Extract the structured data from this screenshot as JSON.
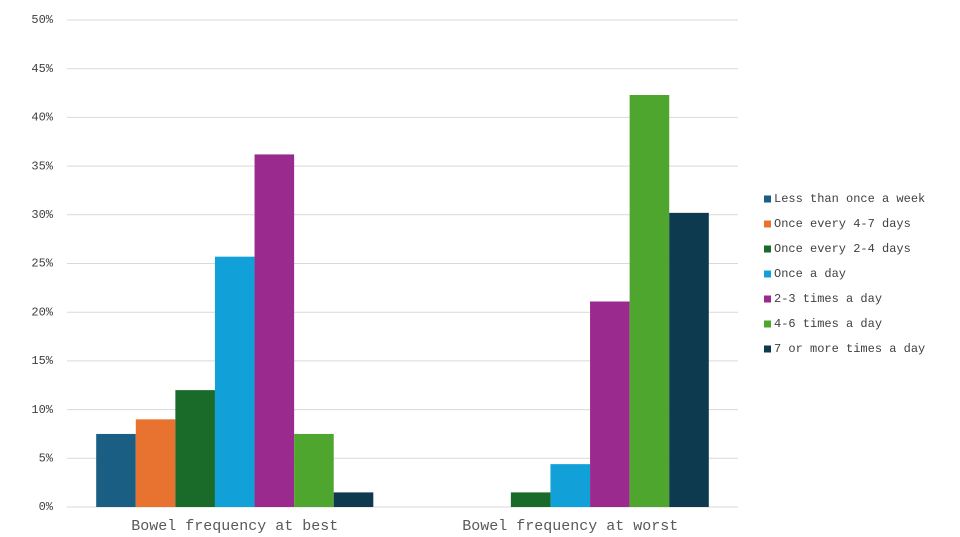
{
  "chart_data": {
    "type": "bar",
    "categories": [
      "Bowel frequency at best",
      "Bowel frequency at worst"
    ],
    "series": [
      {
        "name": "Less than once a week",
        "color": "#1a5e84",
        "values": [
          7.5,
          0
        ]
      },
      {
        "name": "Once every 4-7 days",
        "color": "#e87230",
        "values": [
          9.0,
          0
        ]
      },
      {
        "name": "Once every 2-4 days",
        "color": "#1a6b2a",
        "values": [
          12.0,
          1.5
        ]
      },
      {
        "name": "Once a day",
        "color": "#12a0d8",
        "values": [
          25.7,
          4.4
        ]
      },
      {
        "name": "2-3 times a day",
        "color": "#9b2a8f",
        "values": [
          36.2,
          21.1
        ]
      },
      {
        "name": "4-6 times a day",
        "color": "#4ea62f",
        "values": [
          7.5,
          42.3
        ]
      },
      {
        "name": "7 or more times a day",
        "color": "#0e3a4f",
        "values": [
          1.5,
          30.2
        ]
      }
    ],
    "ylim": [
      0,
      50
    ],
    "yticks": [
      {
        "value": 0,
        "label": "0%"
      },
      {
        "value": 5,
        "label": "5%"
      },
      {
        "value": 10,
        "label": "10%"
      },
      {
        "value": 15,
        "label": "15%"
      },
      {
        "value": 20,
        "label": "20%"
      },
      {
        "value": 25,
        "label": "25%"
      },
      {
        "value": 30,
        "label": "30%"
      },
      {
        "value": 35,
        "label": "35%"
      },
      {
        "value": 40,
        "label": "40%"
      },
      {
        "value": 45,
        "label": "45%"
      },
      {
        "value": 50,
        "label": "50%"
      }
    ],
    "grid": true,
    "legend": "right"
  }
}
